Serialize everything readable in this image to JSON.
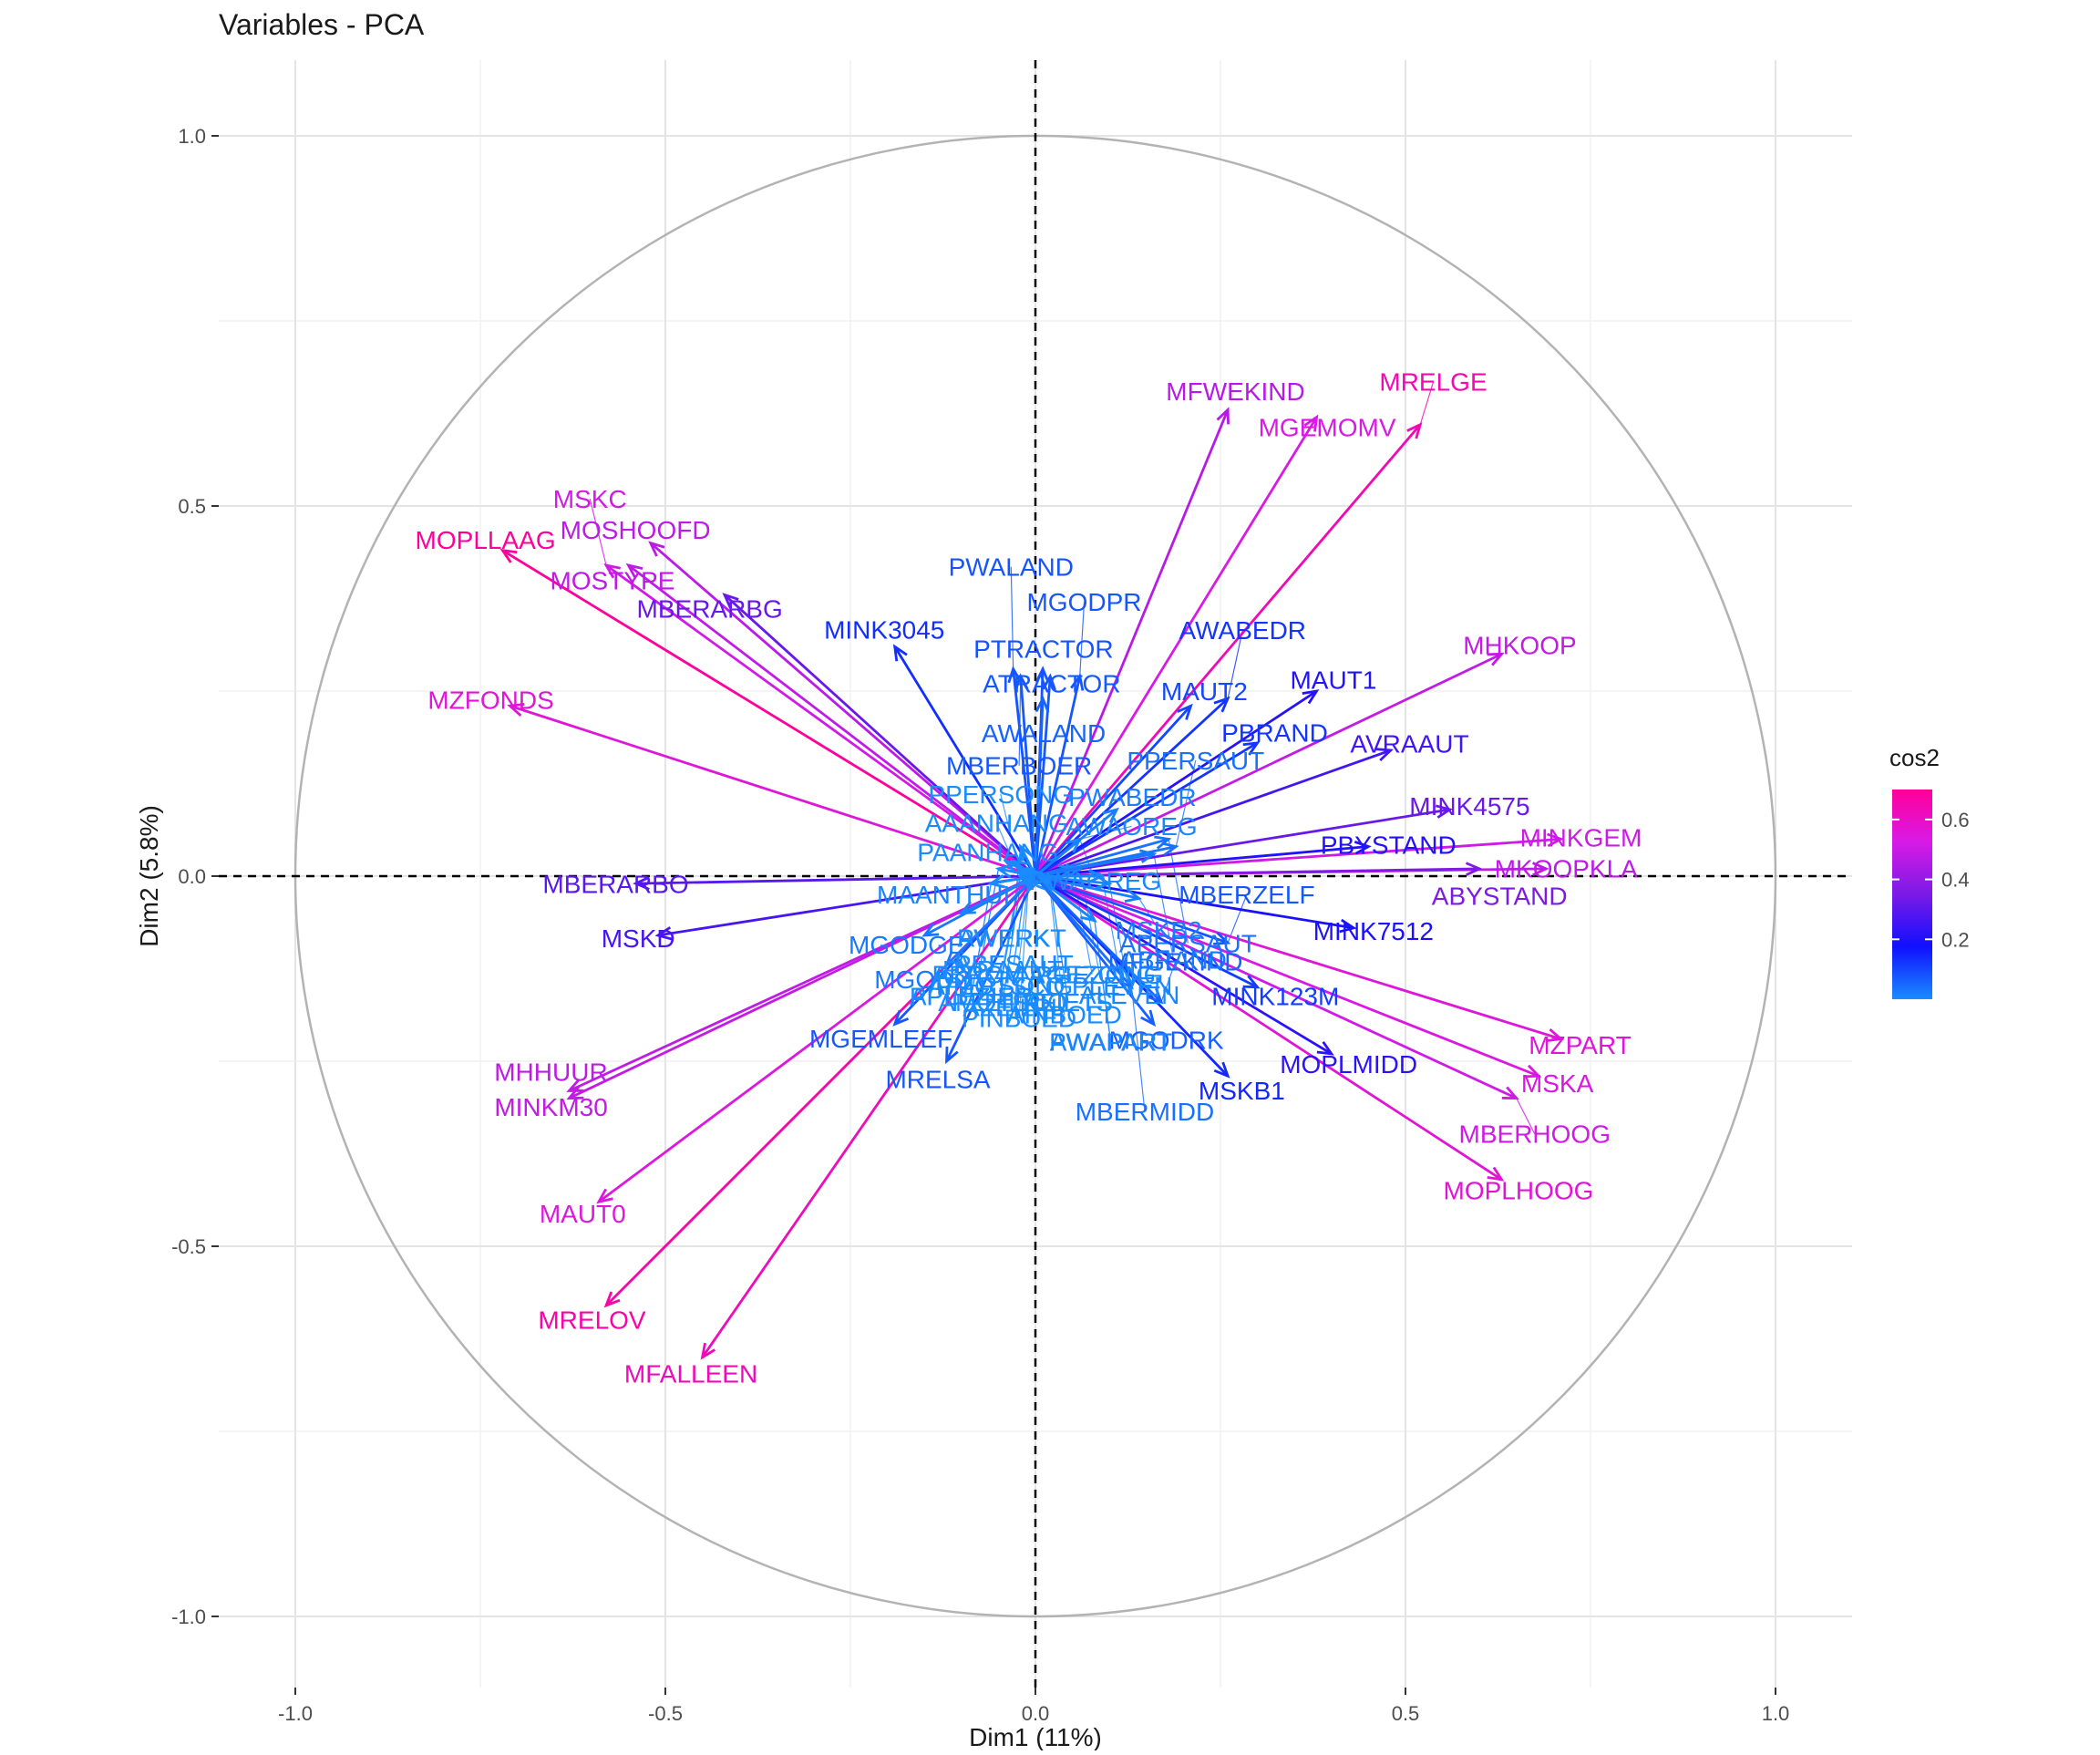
{
  "chart_data": {
    "type": "scatter",
    "subtype": "pca-variable-correlation-circle",
    "title": "Variables - PCA",
    "xlabel": "Dim1 (11%)",
    "ylabel": "Dim2 (5.8%)",
    "xlim": [
      -1.0,
      1.0
    ],
    "ylim": [
      -1.0,
      1.0
    ],
    "x_ticks": [
      "-1.0",
      "-0.5",
      "0.0",
      "0.5",
      "1.0"
    ],
    "y_ticks": [
      "-1.0",
      "-0.5",
      "0.0",
      "0.5",
      "1.0"
    ],
    "grid": true,
    "unit_circle": true,
    "reference_lines": "dashed lines at x=0 and y=0",
    "legend": {
      "title": "cos2",
      "position": "right",
      "ticks": [
        "0.2",
        "0.4",
        "0.6"
      ],
      "range": [
        0.0,
        0.7
      ],
      "colors": [
        "#1A8CFF",
        "#1010FF",
        "#7A1AE6",
        "#D81AE6",
        "#FF009A"
      ]
    },
    "variables": [
      {
        "name": "MFWEKIND",
        "x": 0.26,
        "y": 0.63
      },
      {
        "name": "MGEMOMV",
        "x": 0.38,
        "y": 0.62
      },
      {
        "name": "MRELGE",
        "x": 0.52,
        "y": 0.61
      },
      {
        "name": "MHKOOP",
        "x": 0.63,
        "y": 0.3
      },
      {
        "name": "MINK4575",
        "x": 0.56,
        "y": 0.09
      },
      {
        "name": "MINKGEM",
        "x": 0.71,
        "y": 0.05
      },
      {
        "name": "MKOOPKLA",
        "x": 0.69,
        "y": 0.01
      },
      {
        "name": "ABYSTAND",
        "x": 0.6,
        "y": 0.01
      },
      {
        "name": "PBYSTAND",
        "x": 0.45,
        "y": 0.04
      },
      {
        "name": "MINK7512",
        "x": 0.43,
        "y": -0.07
      },
      {
        "name": "MAUT1",
        "x": 0.38,
        "y": 0.25
      },
      {
        "name": "MAUT2",
        "x": 0.21,
        "y": 0.23
      },
      {
        "name": "MZPART",
        "x": 0.71,
        "y": -0.22
      },
      {
        "name": "MSKA",
        "x": 0.68,
        "y": -0.27
      },
      {
        "name": "MBERHOOG",
        "x": 0.65,
        "y": -0.3
      },
      {
        "name": "MOPLHOOG",
        "x": 0.63,
        "y": -0.41
      },
      {
        "name": "MOPLMIDD",
        "x": 0.4,
        "y": -0.24
      },
      {
        "name": "MINK123M",
        "x": 0.3,
        "y": -0.15
      },
      {
        "name": "MBERZELF",
        "x": 0.26,
        "y": -0.09
      },
      {
        "name": "MSKB1",
        "x": 0.26,
        "y": -0.27
      },
      {
        "name": "MGODRK",
        "x": 0.16,
        "y": -0.2
      },
      {
        "name": "MSKB2",
        "x": 0.14,
        "y": -0.03
      },
      {
        "name": "MFGEKIND",
        "x": 0.17,
        "y": -0.17
      },
      {
        "name": "AWABEDR",
        "x": 0.26,
        "y": 0.24
      },
      {
        "name": "PBRAND",
        "x": 0.3,
        "y": 0.18
      },
      {
        "name": "AVRAAUT",
        "x": 0.48,
        "y": 0.17
      },
      {
        "name": "MOSHOOFD",
        "x": -0.52,
        "y": 0.45
      },
      {
        "name": "MOSTYPE",
        "x": -0.55,
        "y": 0.42
      },
      {
        "name": "MSKC",
        "x": -0.58,
        "y": 0.42
      },
      {
        "name": "MOPLLAAG",
        "x": -0.72,
        "y": 0.44
      },
      {
        "name": "MBERARBG",
        "x": -0.42,
        "y": 0.38
      },
      {
        "name": "MZFONDS",
        "x": -0.71,
        "y": 0.23
      },
      {
        "name": "MINK3045",
        "x": -0.19,
        "y": 0.31
      },
      {
        "name": "MBERARBO",
        "x": -0.54,
        "y": -0.01
      },
      {
        "name": "MSKD",
        "x": -0.51,
        "y": -0.08
      },
      {
        "name": "MINKM30",
        "x": -0.63,
        "y": -0.3
      },
      {
        "name": "MHHUUR",
        "x": -0.63,
        "y": -0.29
      },
      {
        "name": "MAUT0",
        "x": -0.59,
        "y": -0.44
      },
      {
        "name": "MRELOV",
        "x": -0.58,
        "y": -0.58
      },
      {
        "name": "MFALLEEN",
        "x": -0.45,
        "y": -0.65
      },
      {
        "name": "MRELSA",
        "x": -0.12,
        "y": -0.25
      },
      {
        "name": "MGEMLEEF",
        "x": -0.19,
        "y": -0.2
      },
      {
        "name": "MGODOV",
        "x": -0.12,
        "y": -0.12
      },
      {
        "name": "MGODGE",
        "x": -0.15,
        "y": -0.08
      },
      {
        "name": "MAANTHUI",
        "x": -0.1,
        "y": -0.05
      },
      {
        "name": "PTRACTOR",
        "x": 0.01,
        "y": 0.28
      },
      {
        "name": "ATRACTOR",
        "x": 0.02,
        "y": 0.27
      },
      {
        "name": "AWALAND",
        "x": 0.01,
        "y": 0.24
      },
      {
        "name": "MGODPR",
        "x": 0.06,
        "y": 0.27
      },
      {
        "name": "PWALAND",
        "x": -0.03,
        "y": 0.28
      },
      {
        "name": "MBERBOER",
        "x": -0.02,
        "y": 0.27
      },
      {
        "name": "PAANHANG",
        "x": -0.04,
        "y": 0.02
      },
      {
        "name": "AAANHANG",
        "x": -0.03,
        "y": 0.02
      },
      {
        "name": "PWAOREG",
        "x": 0.06,
        "y": 0.05
      },
      {
        "name": "AWAOREG",
        "x": 0.06,
        "y": 0.05
      },
      {
        "name": "AWERKT",
        "x": -0.02,
        "y": 0.04
      },
      {
        "name": "PWERKT",
        "x": -0.02,
        "y": 0.04
      },
      {
        "name": "PWABEDR",
        "x": 0.11,
        "y": 0.09
      },
      {
        "name": "APERSAUT",
        "x": 0.18,
        "y": 0.05
      },
      {
        "name": "PPERSAUT",
        "x": 0.19,
        "y": 0.04
      },
      {
        "name": "PGEZONG",
        "x": 0.06,
        "y": 0.01
      },
      {
        "name": "AGEZONG",
        "x": 0.05,
        "y": 0.01
      },
      {
        "name": "ABRAND",
        "x": 0.16,
        "y": 0.03
      },
      {
        "name": "PLEVEN",
        "x": 0.09,
        "y": 0.0
      },
      {
        "name": "ALEVEN",
        "x": 0.1,
        "y": -0.01
      },
      {
        "name": "ABROM",
        "x": -0.05,
        "y": 0.01
      },
      {
        "name": "PBROM",
        "x": -0.05,
        "y": 0.01
      },
      {
        "name": "ABESAUT",
        "x": -0.01,
        "y": 0.01
      },
      {
        "name": "PBESAUT",
        "x": -0.01,
        "y": 0.01
      },
      {
        "name": "PVRAAUT",
        "x": -0.02,
        "y": 0.01
      },
      {
        "name": "PPERSONG",
        "x": -0.02,
        "y": 0.0
      },
      {
        "name": "APERSONG",
        "x": -0.02,
        "y": 0.0
      },
      {
        "name": "PMOTSCO",
        "x": -0.02,
        "y": 0.0
      },
      {
        "name": "AMOTSCO",
        "x": -0.02,
        "y": -0.01
      },
      {
        "name": "PZEILPL",
        "x": -0.02,
        "y": -0.01
      },
      {
        "name": "AZEILPL",
        "x": -0.01,
        "y": -0.01
      },
      {
        "name": "APLEZIER",
        "x": -0.06,
        "y": -0.01
      },
      {
        "name": "PPLEZIER",
        "x": -0.06,
        "y": -0.01
      },
      {
        "name": "PINBOED",
        "x": -0.01,
        "y": -0.02
      },
      {
        "name": "AINBOED",
        "x": 0.02,
        "y": -0.02
      },
      {
        "name": "PWAPART",
        "x": 0.08,
        "y": -0.06
      },
      {
        "name": "AWAPART",
        "x": 0.08,
        "y": -0.06
      },
      {
        "name": "PFIETS",
        "x": 0.02,
        "y": -0.01
      },
      {
        "name": "AFIETS",
        "x": 0.02,
        "y": -0.01
      },
      {
        "name": "MBERMIDD",
        "x": 0.13,
        "y": -0.15
      }
    ]
  }
}
